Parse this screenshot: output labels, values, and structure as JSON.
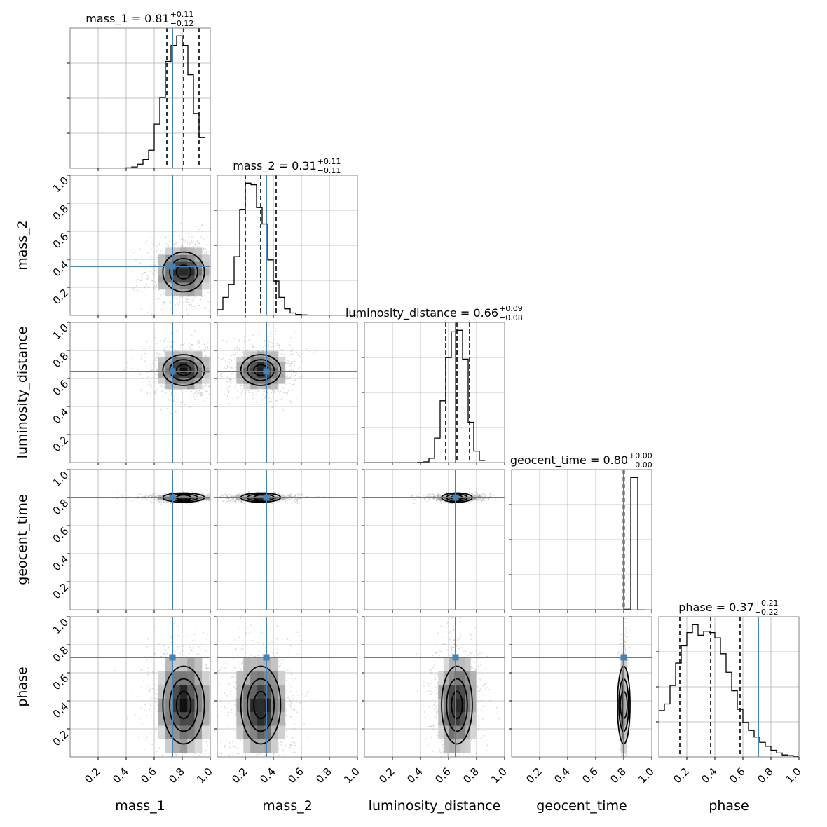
{
  "chart_data": {
    "type": "corner",
    "parameters": [
      "mass_1",
      "mass_2",
      "luminosity_distance",
      "geocent_time",
      "phase"
    ],
    "axis_range": [
      0.0,
      1.0
    ],
    "ticks": [
      0.2,
      0.4,
      0.6,
      0.8,
      1.0
    ],
    "tick_labels": [
      "0.2",
      "0.4",
      "0.6",
      "0.8",
      "1.0"
    ],
    "grid": true,
    "truths": [
      0.73,
      0.35,
      0.65,
      0.8,
      0.71
    ],
    "truth_color": "#4682b4",
    "titles": [
      {
        "param": "mass_1",
        "prefix": "mass_1 = 0.81",
        "plus": "+0.11",
        "minus": "−0.12"
      },
      {
        "param": "mass_2",
        "prefix": "mass_2 = 0.31",
        "plus": "+0.11",
        "minus": "−0.11"
      },
      {
        "param": "luminosity_distance",
        "prefix": "luminosity_distance = 0.66",
        "plus": "+0.09",
        "minus": "−0.08"
      },
      {
        "param": "geocent_time",
        "prefix": "geocent_time = 0.80",
        "plus": "+0.00",
        "minus": "−0.00"
      },
      {
        "param": "phase",
        "prefix": "phase = 0.37",
        "plus": "+0.21",
        "minus": "−0.22"
      }
    ],
    "quantiles": [
      [
        0.69,
        0.81,
        0.92
      ],
      [
        0.2,
        0.31,
        0.42
      ],
      [
        0.58,
        0.66,
        0.75
      ],
      [
        0.8,
        0.8,
        0.8
      ],
      [
        0.15,
        0.37,
        0.58
      ]
    ],
    "histograms": [
      {
        "param": "mass_1",
        "bin_start": 0.4,
        "bin_width": 0.04,
        "counts": [
          0.3,
          1.0,
          3.0,
          6.5,
          13.5,
          33,
          53,
          80,
          92,
          99,
          92,
          70,
          41,
          23
        ]
      },
      {
        "param": "mass_2",
        "bin_start": 0.0,
        "bin_width": 0.04,
        "counts": [
          3.5,
          11,
          19,
          36,
          65,
          81,
          80,
          66,
          56,
          34,
          21,
          11,
          4,
          1.5,
          0.6,
          0.3,
          0.1
        ]
      },
      {
        "param": "luminosity_distance",
        "bin_start": 0.38,
        "bin_width": 0.04,
        "counts": [
          0.2,
          0.5,
          3.0,
          17,
          43,
          73,
          91,
          92,
          72,
          28,
          8,
          1.5
        ]
      },
      {
        "param": "geocent_time",
        "bin_start": 0.75,
        "bin_width": 0.05,
        "counts": [
          0,
          0.3,
          100,
          0
        ]
      },
      {
        "param": "phase",
        "bin_start": 0.0,
        "bin_width": 0.04,
        "counts": [
          35,
          40,
          54,
          71,
          84,
          94,
          100,
          92,
          95,
          94,
          90,
          78,
          64,
          50,
          36,
          26,
          20,
          15,
          11,
          8,
          5,
          3,
          1.5,
          1,
          0.5
        ]
      }
    ],
    "contour_levels": 3
  }
}
